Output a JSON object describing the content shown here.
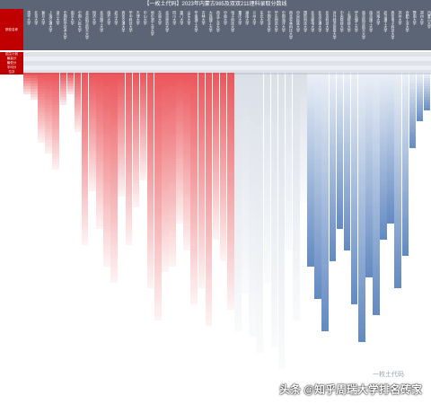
{
  "title": "【一枚土代码】2023年内蒙古985及双双211理科录取分数线",
  "corner_label": "院校名称",
  "row_labels": [
    "招生计划",
    "最高分",
    "最低分",
    "平均分",
    "位次"
  ],
  "colors": {
    "header_bg": "#5b6575",
    "label_bg": "#c00000",
    "red_scale": "#e8393f",
    "blue_scale": "#4a77b8"
  },
  "columns": [
    {
      "name": "清华大学",
      "cells": 8,
      "tone": "red"
    },
    {
      "name": "北京大学",
      "cells": 10,
      "tone": "red"
    },
    {
      "name": "复旦大学",
      "cells": 26,
      "tone": "red"
    },
    {
      "name": "上海交通大学",
      "cells": 30,
      "tone": "red"
    },
    {
      "name": "浙江大学",
      "cells": 36,
      "tone": "red"
    },
    {
      "name": "中国科学技术大学",
      "cells": 12,
      "tone": "red"
    },
    {
      "name": "南京大学",
      "cells": 8,
      "tone": "red"
    },
    {
      "name": "中国人民大学",
      "cells": 22,
      "tone": "red"
    },
    {
      "name": "北京航空航天大学",
      "cells": 64,
      "tone": "red"
    },
    {
      "name": "同济大学",
      "cells": 44,
      "tone": "red"
    },
    {
      "name": "北京理工大学",
      "cells": 58,
      "tone": "red"
    },
    {
      "name": "南开大学",
      "cells": 72,
      "tone": "red"
    },
    {
      "name": "武汉大学",
      "cells": 78,
      "tone": "red"
    },
    {
      "name": "西安交通大学",
      "cells": 46,
      "tone": "red"
    },
    {
      "name": "华中科技大学",
      "cells": 64,
      "tone": "red"
    },
    {
      "name": "天津大学",
      "cells": 50,
      "tone": "red"
    },
    {
      "name": "中山大学",
      "cells": 40,
      "tone": "red"
    },
    {
      "name": "哈尔滨工业大学",
      "cells": 80,
      "tone": "red"
    },
    {
      "name": "东南大学",
      "cells": 92,
      "tone": "red"
    },
    {
      "name": "北京师范大学",
      "cells": 74,
      "tone": "red"
    },
    {
      "name": "四川大学",
      "cells": 72,
      "tone": "red"
    },
    {
      "name": "厦门大学",
      "cells": 56,
      "tone": "red"
    },
    {
      "name": "山东大学",
      "cells": 66,
      "tone": "red"
    },
    {
      "name": "华南理工大学",
      "cells": 86,
      "tone": "red"
    },
    {
      "name": "吉林大学",
      "cells": 80,
      "tone": "red"
    },
    {
      "name": "大连理工大学",
      "cells": 94,
      "tone": "red"
    },
    {
      "name": "西北工业大学",
      "cells": 62,
      "tone": "red"
    },
    {
      "name": "中南大学",
      "cells": 70,
      "tone": "red"
    },
    {
      "name": "电子科技大学",
      "cells": 88,
      "tone": "red"
    },
    {
      "name": "重庆大学",
      "cells": 96,
      "tone": "mix"
    },
    {
      "name": "湖南大学",
      "cells": 82,
      "tone": "mix"
    },
    {
      "name": "兰州大学",
      "cells": 98,
      "tone": "mix"
    },
    {
      "name": "东北大学",
      "cells": 104,
      "tone": "mix"
    },
    {
      "name": "中国农业大学",
      "cells": 78,
      "tone": "mix"
    },
    {
      "name": "华东师范大学",
      "cells": 102,
      "tone": "mix"
    },
    {
      "name": "中国海洋大学",
      "cells": 110,
      "tone": "mix"
    },
    {
      "name": "西北农林科技大学",
      "cells": 66,
      "tone": "mix"
    },
    {
      "name": "中央民族大学",
      "cells": 92,
      "tone": "mix"
    },
    {
      "name": "国防科技大学",
      "cells": 48,
      "tone": "mix"
    },
    {
      "name": "北京邮电大学",
      "cells": 72,
      "tone": "blue"
    },
    {
      "name": "北京交通大学",
      "cells": 84,
      "tone": "blue"
    },
    {
      "name": "北京科技大学",
      "cells": 96,
      "tone": "blue"
    },
    {
      "name": "对外经济贸易大学",
      "cells": 70,
      "tone": "blue"
    },
    {
      "name": "中央财经大学",
      "cells": 58,
      "tone": "blue"
    },
    {
      "name": "上海财经大学",
      "cells": 66,
      "tone": "blue"
    },
    {
      "name": "华东理工大学",
      "cells": 86,
      "tone": "blue"
    },
    {
      "name": "南京航空航天大学",
      "cells": 100,
      "tone": "blue"
    },
    {
      "name": "南京理工大学",
      "cells": 76,
      "tone": "blue"
    },
    {
      "name": "河海大学",
      "cells": 90,
      "tone": "blue"
    },
    {
      "name": "武汉理工大学",
      "cells": 62,
      "tone": "blue"
    },
    {
      "name": "西安电子科技大学",
      "cells": 56,
      "tone": "blue"
    },
    {
      "name": "苏州大学",
      "cells": 80,
      "tone": "blue"
    },
    {
      "name": "合肥工业大学",
      "cells": 68,
      "tone": "blue"
    },
    {
      "name": "暨南大学",
      "cells": 28,
      "tone": "blue"
    },
    {
      "name": "郑州大学",
      "cells": 18,
      "tone": "blue"
    },
    {
      "name": "内蒙古大学",
      "cells": 14,
      "tone": "blue"
    }
  ],
  "watermark": "头条 @知乎周瑞大学排名砖家",
  "watermark_small": "一枚土代码"
}
